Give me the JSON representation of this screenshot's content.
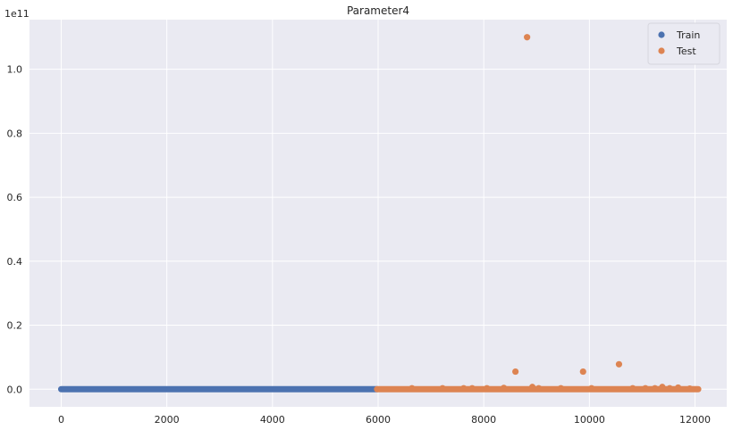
{
  "chart_data": {
    "type": "scatter",
    "title": "Parameter4",
    "xlabel": "",
    "ylabel": "",
    "xlim": [
      -600,
      12600
    ],
    "ylim": [
      -5500000000,
      115500000000
    ],
    "y_exponent_label": "1e11",
    "x_ticks": [
      0,
      2000,
      4000,
      6000,
      8000,
      10000,
      12000
    ],
    "x_tick_labels": [
      "0",
      "2000",
      "4000",
      "6000",
      "8000",
      "10000",
      "12000"
    ],
    "y_ticks": [
      0,
      20000000000,
      40000000000,
      60000000000,
      80000000000,
      100000000000
    ],
    "y_tick_labels": [
      "0.0",
      "0.2",
      "0.4",
      "0.6",
      "0.8",
      "1.0"
    ],
    "grid": true,
    "legend_position": "top-right",
    "series": [
      {
        "name": "Train",
        "color": "#4c72b0",
        "x_range": [
          0,
          5980
        ],
        "y_baseline": 0,
        "points": []
      },
      {
        "name": "Test",
        "color": "#dd8452",
        "x_range": [
          5980,
          12060
        ],
        "y_baseline": 0,
        "points": [
          [
            8820,
            110000000000
          ],
          [
            8600,
            5500000000
          ],
          [
            9880,
            5500000000
          ],
          [
            10560,
            7800000000
          ],
          [
            8920,
            700000000
          ],
          [
            11380,
            700000000
          ],
          [
            11680,
            500000000
          ],
          [
            6640,
            300000000
          ],
          [
            7220,
            300000000
          ],
          [
            7620,
            300000000
          ],
          [
            7780,
            300000000
          ],
          [
            8060,
            300000000
          ],
          [
            8380,
            400000000
          ],
          [
            9040,
            300000000
          ],
          [
            9460,
            300000000
          ],
          [
            10040,
            300000000
          ],
          [
            10820,
            300000000
          ],
          [
            11060,
            300000000
          ],
          [
            11240,
            300000000
          ],
          [
            11520,
            300000000
          ],
          [
            11900,
            200000000
          ]
        ]
      }
    ]
  }
}
